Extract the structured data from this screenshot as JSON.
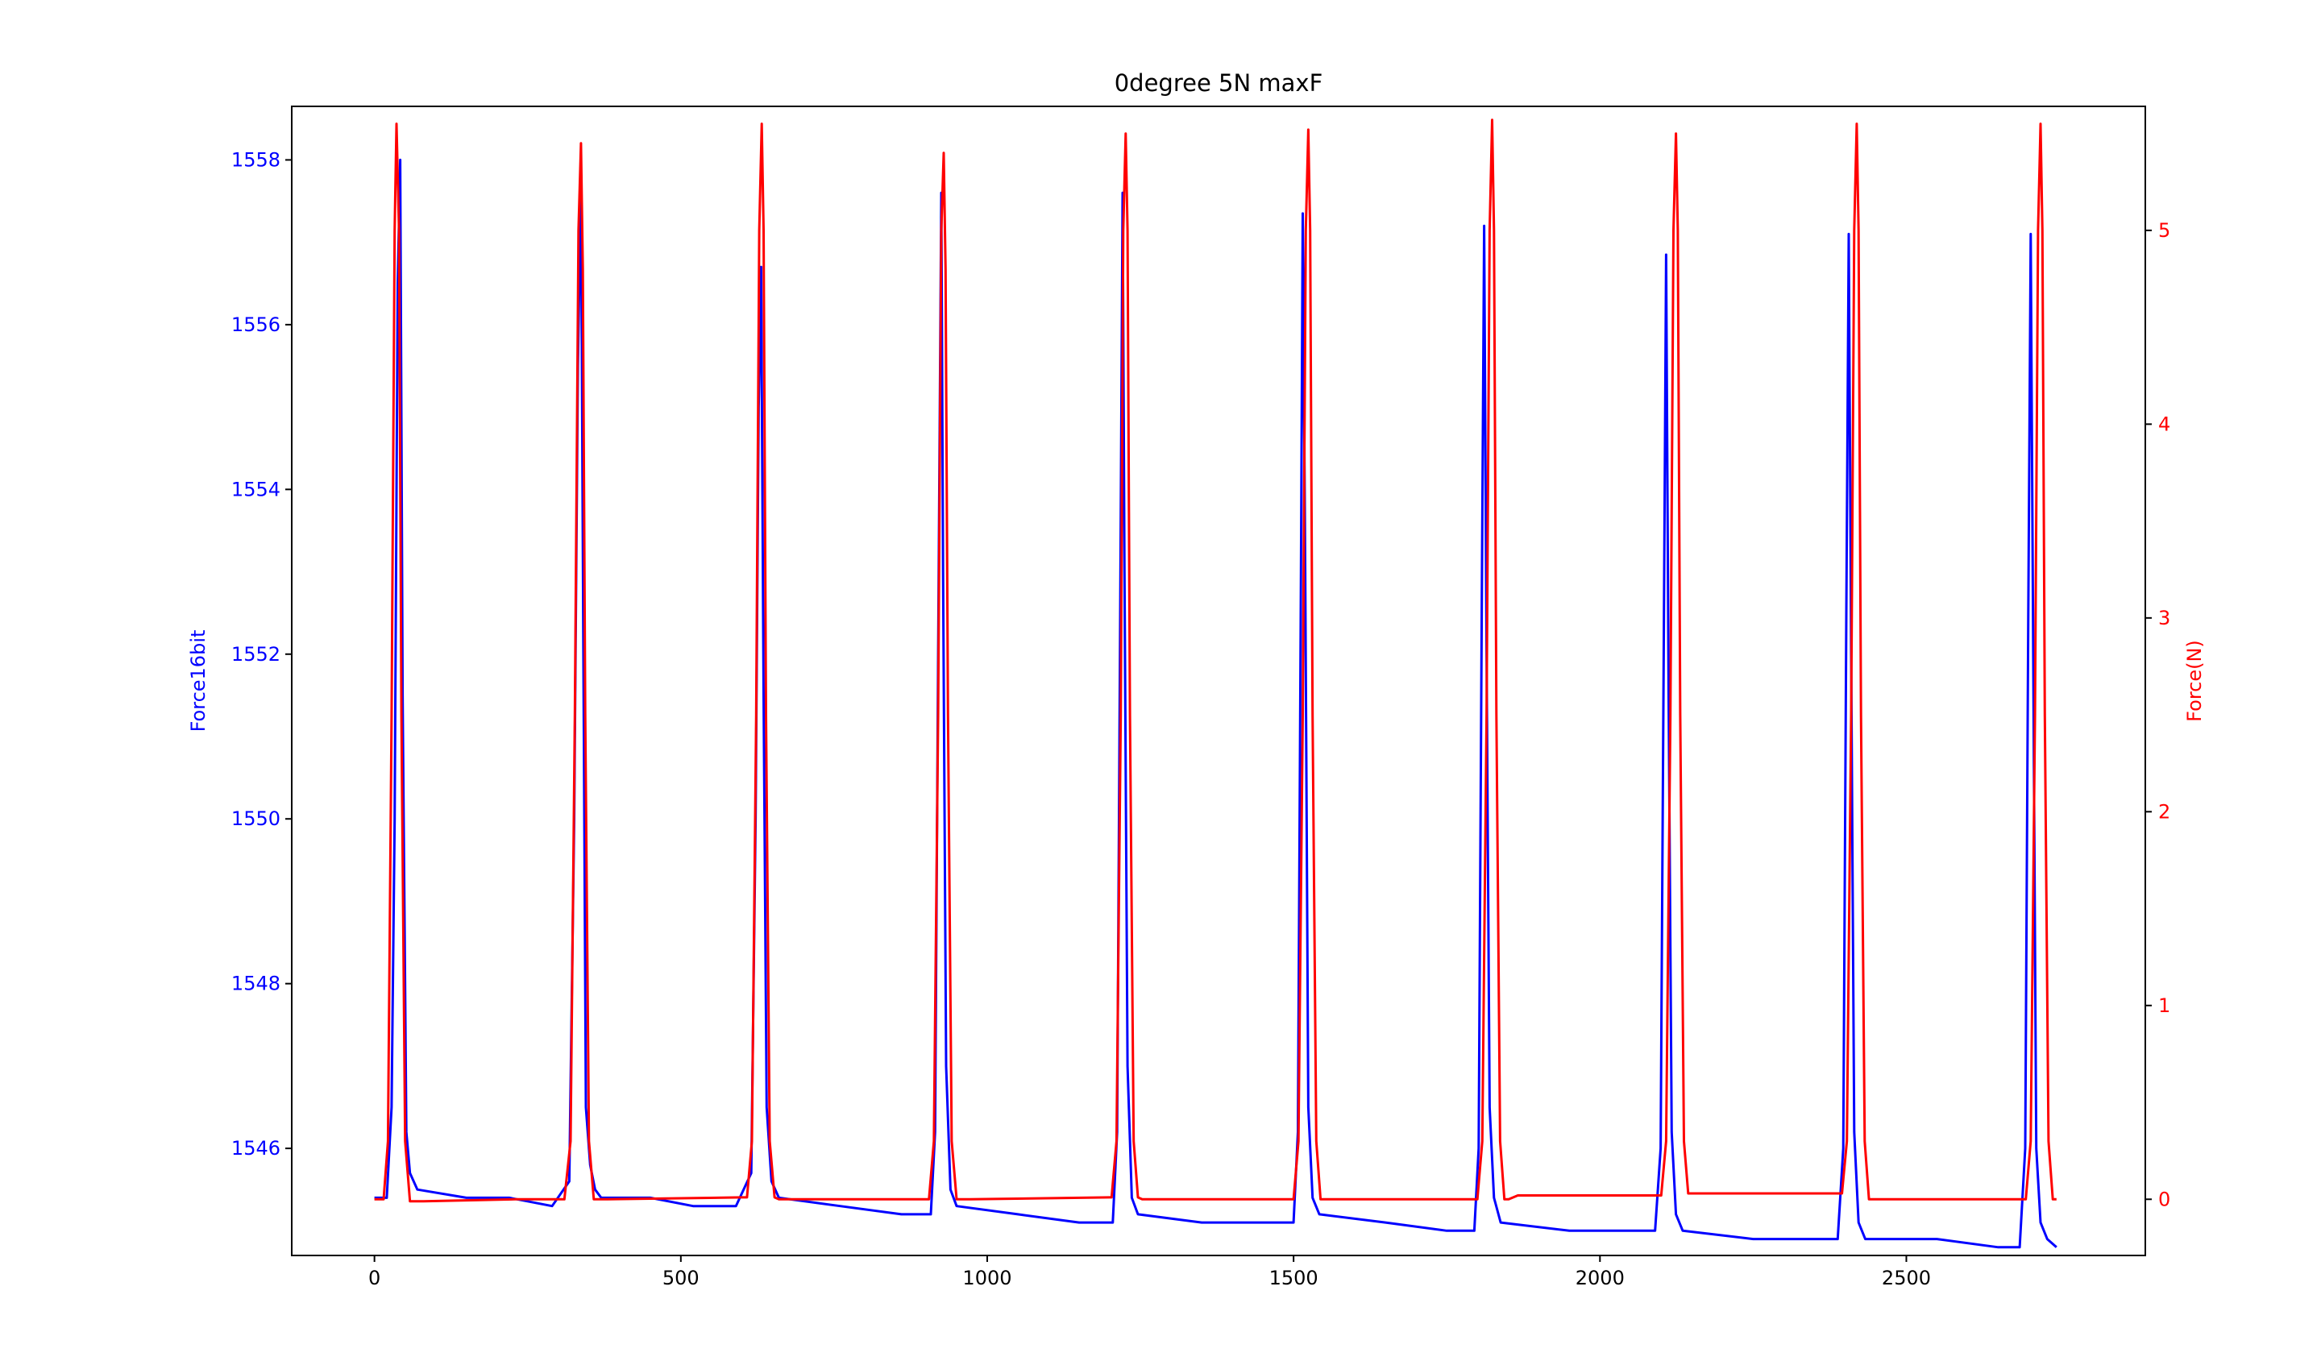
{
  "chart_data": {
    "type": "line",
    "title": "0degree 5N maxF",
    "xlabel": "",
    "x_ticks": [
      0,
      500,
      1000,
      1500,
      2000,
      2500
    ],
    "x_tick_labels": [
      "0",
      "500",
      "1000",
      "1500",
      "2000",
      "2500"
    ],
    "xlim": [
      -135,
      2890
    ],
    "legend": "none",
    "grid": false,
    "axes": {
      "left": {
        "label": "Force16bit",
        "color": "#0000ff",
        "ylim": [
          1544.7,
          1558.65
        ],
        "ticks": [
          1546,
          1548,
          1550,
          1552,
          1554,
          1556,
          1558
        ],
        "tick_labels": [
          "1546",
          "1548",
          "1550",
          "1552",
          "1554",
          "1556",
          "1558"
        ]
      },
      "right": {
        "label": "Force(N)",
        "color": "#ff0000",
        "ylim": [
          -0.29,
          5.64
        ],
        "ticks": [
          0,
          1,
          2,
          3,
          4,
          5
        ],
        "tick_labels": [
          "0",
          "1",
          "2",
          "3",
          "4",
          "5"
        ]
      }
    },
    "series": [
      {
        "name": "",
        "axis": "left",
        "color": "#0000ff",
        "x": [
          0,
          20,
          28,
          33,
          38,
          42,
          46,
          52,
          58,
          70,
          150,
          220,
          290,
          318,
          326,
          332,
          337,
          341,
          345,
          352,
          360,
          370,
          450,
          520,
          590,
          615,
          622,
          627,
          631,
          635,
          640,
          648,
          660,
          760,
          860,
          908,
          915,
          920,
          925,
          928,
          933,
          940,
          950,
          1050,
          1150,
          1205,
          1212,
          1217,
          1221,
          1224,
          1229,
          1236,
          1246,
          1350,
          1450,
          1500,
          1507,
          1512,
          1515,
          1519,
          1524,
          1531,
          1542,
          1650,
          1750,
          1795,
          1802,
          1807,
          1811,
          1815,
          1820,
          1827,
          1838,
          1950,
          2050,
          2090,
          2099,
          2104,
          2108,
          2112,
          2117,
          2124,
          2135,
          2250,
          2350,
          2388,
          2397,
          2402,
          2406,
          2410,
          2415,
          2422,
          2433,
          2550,
          2650,
          2685,
          2694,
          2699,
          2703,
          2707,
          2712,
          2719,
          2730,
          2745
        ],
        "y": [
          1545.4,
          1545.4,
          1546.5,
          1550.0,
          1556.5,
          1558.0,
          1551.5,
          1546.2,
          1545.7,
          1545.5,
          1545.4,
          1545.4,
          1545.3,
          1545.6,
          1550.0,
          1555.5,
          1557.75,
          1552.0,
          1546.5,
          1545.8,
          1545.5,
          1545.4,
          1545.4,
          1545.3,
          1545.3,
          1545.7,
          1550.0,
          1555.0,
          1556.7,
          1551.5,
          1546.5,
          1545.6,
          1545.4,
          1545.3,
          1545.2,
          1545.2,
          1546.2,
          1552.0,
          1557.6,
          1553.0,
          1547.0,
          1545.5,
          1545.3,
          1545.2,
          1545.1,
          1545.1,
          1546.2,
          1552.5,
          1557.6,
          1553.0,
          1547.0,
          1545.4,
          1545.2,
          1545.1,
          1545.1,
          1545.1,
          1546.2,
          1553.0,
          1557.35,
          1553.0,
          1546.5,
          1545.4,
          1545.2,
          1545.1,
          1545.0,
          1545.0,
          1546.0,
          1552.5,
          1557.2,
          1552.0,
          1546.5,
          1545.4,
          1545.1,
          1545.0,
          1545.0,
          1545.0,
          1546.0,
          1552.0,
          1556.85,
          1551.5,
          1546.2,
          1545.2,
          1545.0,
          1544.9,
          1544.9,
          1544.9,
          1546.0,
          1552.5,
          1557.1,
          1552.0,
          1546.2,
          1545.1,
          1544.9,
          1544.9,
          1544.8,
          1544.8,
          1546.0,
          1552.5,
          1557.1,
          1552.0,
          1546.0,
          1545.1,
          1544.9,
          1544.8
        ]
      },
      {
        "name": "",
        "axis": "right",
        "color": "#ff0000",
        "x": [
          0,
          15,
          22,
          28,
          33,
          36,
          40,
          44,
          50,
          58,
          65,
          80,
          230,
          310,
          320,
          327,
          333,
          337,
          340,
          344,
          350,
          358,
          365,
          380,
          600,
          608,
          616,
          623,
          628,
          632,
          635,
          639,
          645,
          653,
          660,
          675,
          900,
          905,
          913,
          920,
          925,
          929,
          932,
          936,
          942,
          950,
          957,
          972,
          1200,
          1203,
          1211,
          1218,
          1222,
          1226,
          1229,
          1233,
          1239,
          1246,
          1253,
          1268,
          1495,
          1500,
          1508,
          1515,
          1520,
          1524,
          1527,
          1531,
          1537,
          1544,
          1551,
          1566,
          1795,
          1800,
          1808,
          1815,
          1820,
          1824,
          1827,
          1831,
          1837,
          1844,
          1851,
          1866,
          2095,
          2100,
          2108,
          2115,
          2120,
          2124,
          2127,
          2131,
          2137,
          2144,
          2151,
          2166,
          2390,
          2395,
          2403,
          2410,
          2415,
          2419,
          2422,
          2426,
          2432,
          2439,
          2446,
          2461,
          2690,
          2695,
          2703,
          2710,
          2715,
          2719,
          2722,
          2726,
          2732,
          2739,
          2745
        ],
        "y": [
          0.0,
          0.0,
          0.3,
          2.5,
          5.0,
          5.55,
          5.0,
          2.5,
          0.3,
          -0.01,
          -0.01,
          -0.01,
          0.0,
          0.0,
          0.3,
          2.5,
          5.0,
          5.45,
          4.8,
          2.5,
          0.3,
          0.0,
          0.0,
          0.0,
          0.01,
          0.01,
          0.3,
          2.5,
          5.0,
          5.55,
          5.0,
          2.5,
          0.3,
          0.01,
          0.0,
          0.0,
          0.0,
          0.0,
          0.3,
          2.5,
          5.0,
          5.4,
          4.8,
          2.5,
          0.3,
          0.0,
          0.0,
          0.0,
          0.01,
          0.01,
          0.3,
          2.5,
          5.0,
          5.5,
          5.0,
          2.5,
          0.3,
          0.01,
          0.0,
          0.0,
          0.0,
          0.0,
          0.3,
          2.5,
          5.0,
          5.52,
          5.0,
          2.5,
          0.3,
          0.0,
          0.0,
          0.0,
          0.0,
          0.0,
          0.3,
          2.5,
          5.0,
          5.57,
          5.0,
          2.5,
          0.3,
          0.0,
          0.0,
          0.02,
          0.02,
          0.02,
          0.3,
          2.5,
          5.0,
          5.5,
          5.0,
          2.5,
          0.3,
          0.03,
          0.03,
          0.03,
          0.03,
          0.03,
          0.3,
          2.5,
          5.0,
          5.55,
          5.0,
          2.5,
          0.3,
          0.0,
          0.0,
          0.0,
          0.0,
          0.0,
          0.3,
          2.5,
          5.0,
          5.55,
          5.0,
          2.5,
          0.3,
          0.0,
          0.0
        ]
      }
    ]
  }
}
